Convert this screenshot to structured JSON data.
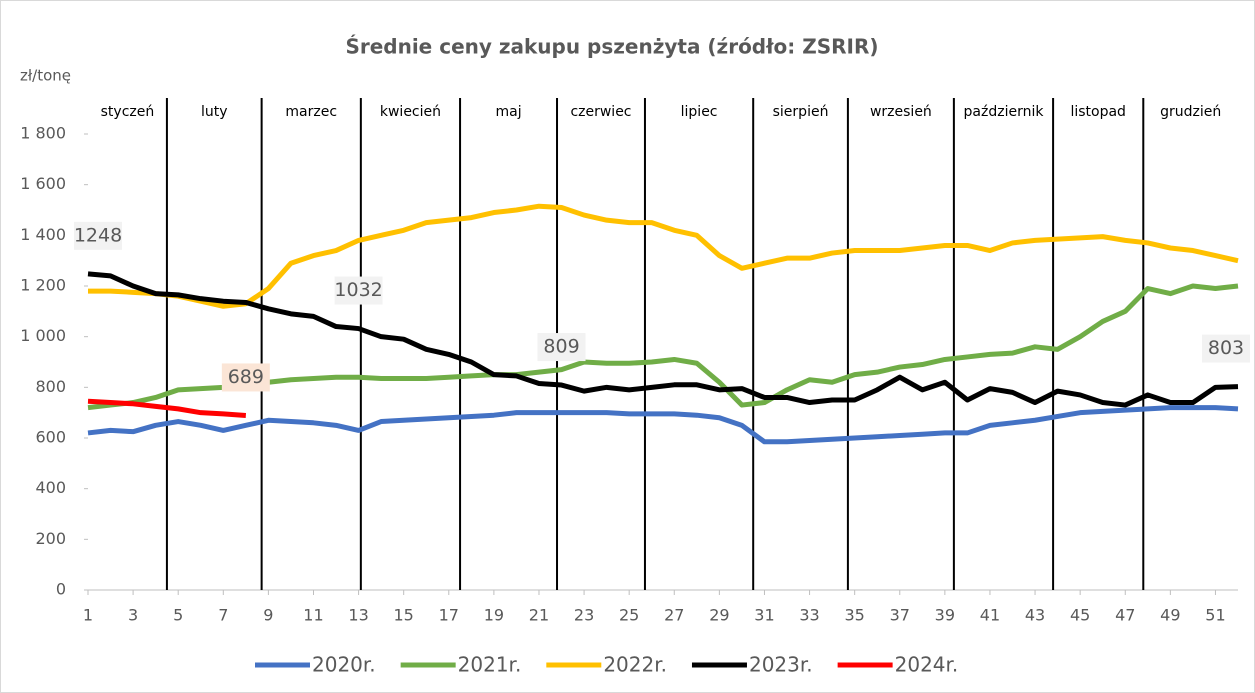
{
  "chart_data": {
    "type": "line",
    "title": "Średnie ceny zakupu pszenżyta (źródło: ZSRIR)",
    "y_label": "zł/tonę",
    "x": [
      1,
      2,
      3,
      4,
      5,
      6,
      7,
      8,
      9,
      10,
      11,
      12,
      13,
      14,
      15,
      16,
      17,
      18,
      19,
      20,
      21,
      22,
      23,
      24,
      25,
      26,
      27,
      28,
      29,
      30,
      31,
      32,
      33,
      34,
      35,
      36,
      37,
      38,
      39,
      40,
      41,
      42,
      43,
      44,
      45,
      46,
      47,
      48,
      49,
      50,
      51,
      52
    ],
    "xlim": [
      1,
      52
    ],
    "xticks": [
      1,
      3,
      5,
      7,
      9,
      11,
      13,
      15,
      17,
      19,
      21,
      23,
      25,
      27,
      29,
      31,
      33,
      35,
      37,
      39,
      41,
      43,
      45,
      47,
      49,
      51
    ],
    "ylim": [
      0,
      1800
    ],
    "yticks": [
      0,
      200,
      400,
      600,
      800,
      {
        "value": 1000,
        "label": "1 000"
      },
      {
        "value": 1200,
        "label": "1 200"
      },
      {
        "value": 1400,
        "label": "1 400"
      },
      {
        "value": 1600,
        "label": "1 600"
      },
      {
        "value": 1800,
        "label": "1 800"
      }
    ],
    "months": [
      {
        "label": "styczeń",
        "start": 1
      },
      {
        "label": "luty",
        "start": 4.5
      },
      {
        "label": "marzec",
        "start": 8.7
      },
      {
        "label": "kwiecień",
        "start": 13.1
      },
      {
        "label": "maj",
        "start": 17.5
      },
      {
        "label": "czerwiec",
        "start": 21.8
      },
      {
        "label": "lipiec",
        "start": 25.7
      },
      {
        "label": "sierpień",
        "start": 30.5
      },
      {
        "label": "wrzesień",
        "start": 34.7
      },
      {
        "label": "październik",
        "start": 39.4
      },
      {
        "label": "listopad",
        "start": 43.8
      },
      {
        "label": "grudzień",
        "start": 47.8
      }
    ],
    "series": [
      {
        "name": "2020r.",
        "color": "#4472c4",
        "values": [
          620,
          630,
          625,
          650,
          665,
          650,
          630,
          650,
          670,
          665,
          660,
          650,
          630,
          665,
          670,
          675,
          680,
          685,
          690,
          700,
          700,
          700,
          700,
          700,
          695,
          695,
          695,
          690,
          680,
          650,
          585,
          585,
          590,
          595,
          600,
          605,
          610,
          615,
          620,
          620,
          650,
          660,
          670,
          685,
          700,
          705,
          710,
          715,
          720,
          720,
          720,
          715
        ]
      },
      {
        "name": "2021r.",
        "color": "#70ad47",
        "values": [
          720,
          730,
          740,
          760,
          790,
          795,
          800,
          810,
          820,
          830,
          835,
          840,
          840,
          835,
          835,
          835,
          840,
          845,
          850,
          850,
          860,
          870,
          900,
          895,
          895,
          900,
          910,
          895,
          820,
          730,
          740,
          790,
          830,
          820,
          850,
          860,
          880,
          890,
          910,
          920,
          930,
          935,
          960,
          950,
          1000,
          1060,
          1100,
          1190,
          1170,
          1200,
          1190,
          1200
        ]
      },
      {
        "name": "2022r.",
        "color": "#ffc000",
        "values": [
          1180,
          1180,
          1175,
          1170,
          1160,
          1140,
          1120,
          1130,
          1190,
          1290,
          1320,
          1340,
          1380,
          1400,
          1420,
          1450,
          1460,
          1470,
          1490,
          1500,
          1515,
          1510,
          1480,
          1460,
          1450,
          1450,
          1420,
          1400,
          1320,
          1270,
          1290,
          1310,
          1310,
          1330,
          1340,
          1340,
          1340,
          1350,
          1360,
          1360,
          1340,
          1370,
          1380,
          1385,
          1390,
          1395,
          1380,
          1370,
          1350,
          1340,
          1320,
          1300
        ]
      },
      {
        "name": "2023r.",
        "color": "#000000",
        "values": [
          1248,
          1240,
          1200,
          1170,
          1165,
          1150,
          1140,
          1135,
          1110,
          1090,
          1080,
          1040,
          1032,
          1000,
          990,
          950,
          930,
          900,
          850,
          845,
          815,
          809,
          785,
          800,
          790,
          800,
          810,
          810,
          790,
          795,
          760,
          760,
          740,
          750,
          750,
          790,
          840,
          790,
          820,
          750,
          795,
          780,
          740,
          785,
          770,
          740,
          730,
          770,
          740,
          740,
          800,
          803
        ],
        "value_labels": [
          "1248",
          null,
          null,
          null,
          null,
          null,
          null,
          null,
          null,
          null,
          null,
          null,
          "1032",
          null,
          null,
          null,
          null,
          null,
          null,
          null,
          null,
          "809",
          null,
          null,
          null,
          null,
          null,
          null,
          null,
          null,
          null,
          null,
          null,
          null,
          null,
          null,
          null,
          null,
          null,
          null,
          null,
          null,
          null,
          null,
          null,
          null,
          null,
          null,
          null,
          null,
          null,
          "803"
        ]
      },
      {
        "name": "2024r.",
        "color": "#ff0000",
        "values": [
          745,
          740,
          735,
          725,
          715,
          700,
          695,
          689,
          null,
          null,
          null,
          null,
          null,
          null,
          null,
          null,
          null,
          null,
          null,
          null,
          null,
          null,
          null,
          null,
          null,
          null,
          null,
          null,
          null,
          null,
          null,
          null,
          null,
          null,
          null,
          null,
          null,
          null,
          null,
          null,
          null,
          null,
          null,
          null,
          null,
          null,
          null,
          null,
          null,
          null,
          null,
          null
        ],
        "value_labels": [
          null,
          null,
          null,
          null,
          null,
          null,
          null,
          "689",
          null,
          null,
          null,
          null,
          null,
          null,
          null,
          null,
          null,
          null,
          null,
          null,
          null,
          null,
          null,
          null,
          null,
          null,
          null,
          null,
          null,
          null,
          null,
          null,
          null,
          null,
          null,
          null,
          null,
          null,
          null,
          null,
          null,
          null,
          null,
          null,
          null,
          null,
          null,
          null,
          null,
          null,
          null,
          null
        ]
      }
    ]
  }
}
